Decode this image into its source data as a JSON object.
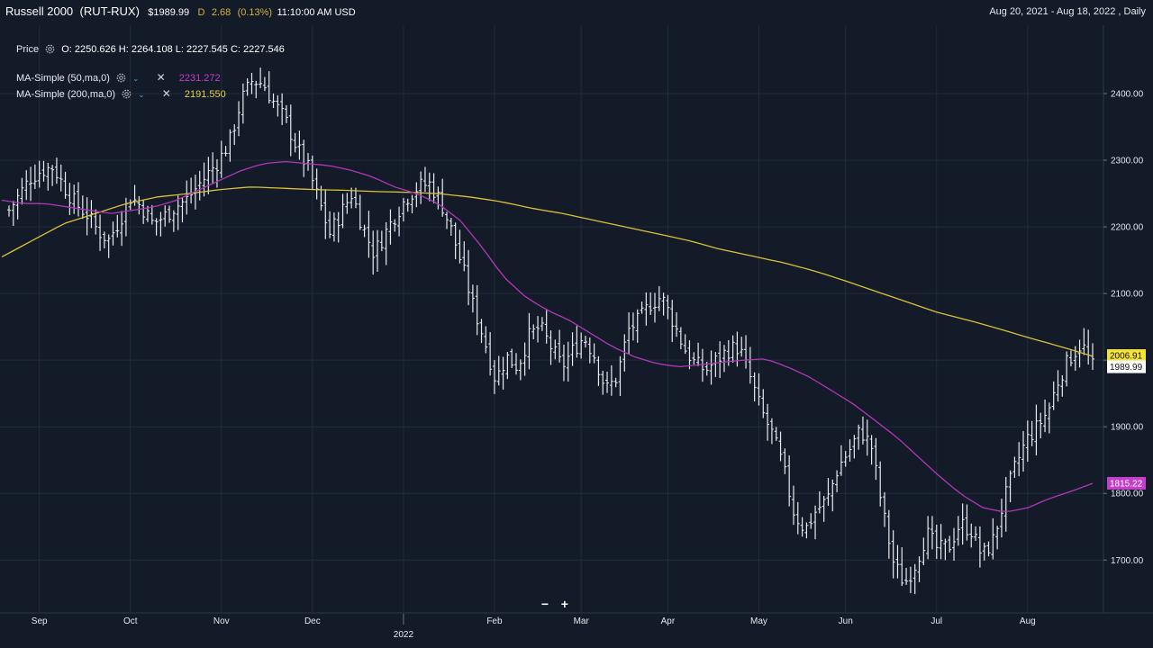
{
  "header": {
    "title": "Russell 2000",
    "symbol": "(RUT-RUX)",
    "price": "$1989.99",
    "change_flag": "D",
    "change": "2.68",
    "change_pct": "(0.13%)",
    "time": "11:10:00 AM USD",
    "range": "Aug 20, 2021 - Aug 18, 2022 , Daily"
  },
  "legend": {
    "price_label": "Price",
    "ohlc": "O: 2250.626  H: 2264.108  L: 2227.545  C: 2227.546",
    "ma50_label": "MA-Simple (50,ma,0)",
    "ma50_value": "2231.272",
    "ma200_label": "MA-Simple (200,ma,0)",
    "ma200_value": "2191.550"
  },
  "icons": {
    "gear": "gear-icon",
    "chevron": "chevron-down-icon",
    "close": "close-icon"
  },
  "zoom": {
    "minus": "−",
    "plus": "+"
  },
  "colors": {
    "background": "#131a28",
    "grid": "#232c3c",
    "bars": "#e8ebf0",
    "ma50": "#b038b8",
    "ma200": "#d9c23a",
    "ma200_tag": "#f2e23a",
    "ma50_tag": "#c23fc9",
    "price_tag": "#ffffff"
  },
  "chart_data": {
    "type": "ohlc",
    "x_ticks": [
      "Sep",
      "Oct",
      "Nov",
      "Dec",
      "2022",
      "Feb",
      "Mar",
      "Apr",
      "May",
      "Jun",
      "Jul",
      "Aug"
    ],
    "x_year_label": "2022",
    "y_ticks": [
      "1700.00",
      "1800.00",
      "1900.00",
      "2000.00",
      "2100.00",
      "2200.00",
      "2300.00",
      "2400.00"
    ],
    "ylim": [
      1622,
      2500
    ],
    "grid": true,
    "last_price": "1989.99",
    "ma200_last": "2006.91",
    "ma50_last": "1815.22",
    "close_series": [
      2225,
      2250,
      2275,
      2285,
      2290,
      2260,
      2235,
      2220,
      2195,
      2180,
      2210,
      2245,
      2230,
      2205,
      2215,
      2230,
      2240,
      2260,
      2280,
      2300,
      2330,
      2390,
      2420,
      2415,
      2385,
      2360,
      2320,
      2290,
      2240,
      2190,
      2220,
      2250,
      2200,
      2160,
      2190,
      2220,
      2245,
      2260,
      2265,
      2240,
      2195,
      2140,
      2080,
      2030,
      1970,
      2005,
      1990,
      2035,
      2050,
      2020,
      1990,
      2015,
      2035,
      2005,
      1955,
      1975,
      2045,
      2060,
      2085,
      2095,
      2060,
      2020,
      1995,
      1985,
      2000,
      2015,
      2020,
      1975,
      1925,
      1890,
      1840,
      1770,
      1745,
      1775,
      1790,
      1840,
      1865,
      1895,
      1870,
      1775,
      1695,
      1665,
      1695,
      1740,
      1715,
      1720,
      1755,
      1745,
      1705,
      1730,
      1790,
      1840,
      1880,
      1900,
      1925,
      1975,
      2005,
      2025,
      1990
    ],
    "ma50_series": [
      2240,
      2235,
      2235,
      2230,
      2225,
      2220,
      2225,
      2230,
      2240,
      2255,
      2270,
      2285,
      2295,
      2298,
      2295,
      2292,
      2285,
      2275,
      2260,
      2250,
      2235,
      2210,
      2170,
      2125,
      2095,
      2075,
      2060,
      2040,
      2020,
      2005,
      1995,
      1990,
      1993,
      1997,
      2000,
      2002,
      1990,
      1975,
      1955,
      1935,
      1910,
      1885,
      1855,
      1825,
      1798,
      1778,
      1772,
      1778,
      1792,
      1803,
      1815
    ],
    "ma200_series": [
      2155,
      2180,
      2205,
      2220,
      2235,
      2245,
      2250,
      2256,
      2260,
      2258,
      2256,
      2255,
      2253,
      2252,
      2250,
      2245,
      2238,
      2228,
      2220,
      2210,
      2200,
      2190,
      2180,
      2167,
      2157,
      2147,
      2135,
      2120,
      2104,
      2088,
      2072,
      2060,
      2047,
      2033,
      2020,
      2006
    ]
  }
}
